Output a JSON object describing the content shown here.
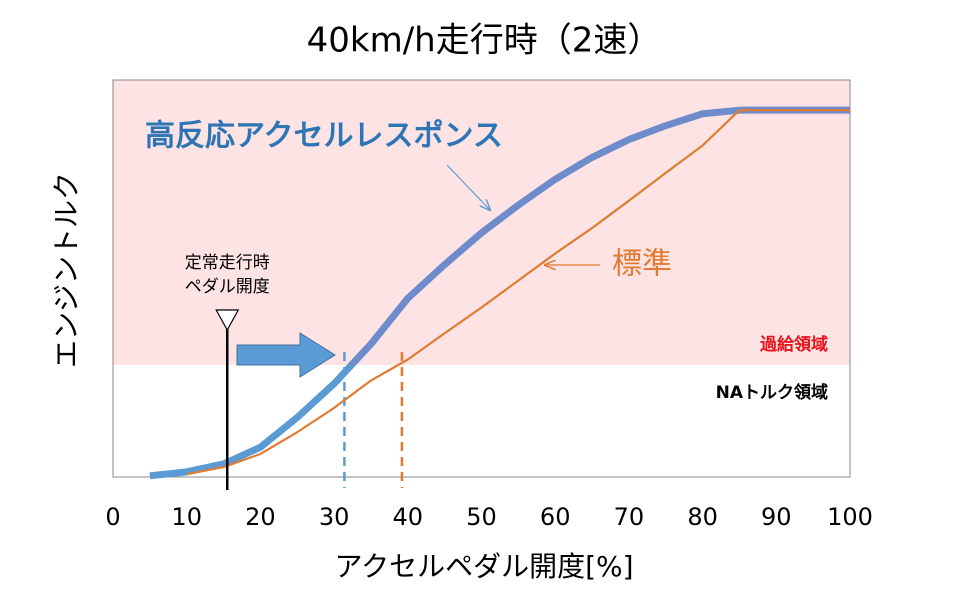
{
  "chart_data": {
    "type": "line",
    "title": "40km/h走行時（2速）",
    "x_label": "アクセルペダル開度[%]",
    "y_label": "エンジントルク",
    "x": [
      0,
      5,
      10,
      15,
      20,
      25,
      30,
      35,
      40,
      45,
      50,
      55,
      60,
      65,
      70,
      75,
      80,
      85,
      90,
      95,
      100
    ],
    "xlim": [
      0,
      100
    ],
    "xticks": [
      0,
      10,
      20,
      30,
      40,
      50,
      60,
      70,
      80,
      90,
      100
    ],
    "ylim": [
      0,
      100
    ],
    "series": [
      {
        "name": "高反応アクセルレスポンス",
        "color": "#5b9bd5",
        "color_upper": "#6e8ccc",
        "values": [
          null,
          0.3,
          1.3,
          3.3,
          7.5,
          15,
          23.5,
          33.5,
          45,
          53.5,
          61.5,
          68.5,
          75,
          80.5,
          85,
          88.5,
          91.5,
          92.4,
          92.4,
          92.4,
          92.4
        ]
      },
      {
        "name": "標準",
        "color": "#e07b30",
        "values": [
          null,
          null,
          0.7,
          2.5,
          5.8,
          11.3,
          17.4,
          24.3,
          29.6,
          36.2,
          42.7,
          49.5,
          56.3,
          62.7,
          69.6,
          76.6,
          83.5,
          92.4,
          92.4,
          92.4,
          92.4
        ]
      }
    ],
    "regions": [
      {
        "name": "過給領域",
        "from": 28.2,
        "to": 100,
        "color": "#fde3e4",
        "label_color": "#e8141c"
      },
      {
        "name": "NAトルク領域",
        "from": 0,
        "to": 28.2,
        "color": "#ffffff",
        "label_color": "#000000"
      }
    ],
    "steady_pedal": {
      "label": [
        "定常走行時",
        "ペダル開度"
      ],
      "x": 15.5
    },
    "dashed_lines": [
      {
        "x": 31.4,
        "color": "#5b9bd5"
      },
      {
        "x": 39.2,
        "color": "#e07b30"
      }
    ]
  }
}
